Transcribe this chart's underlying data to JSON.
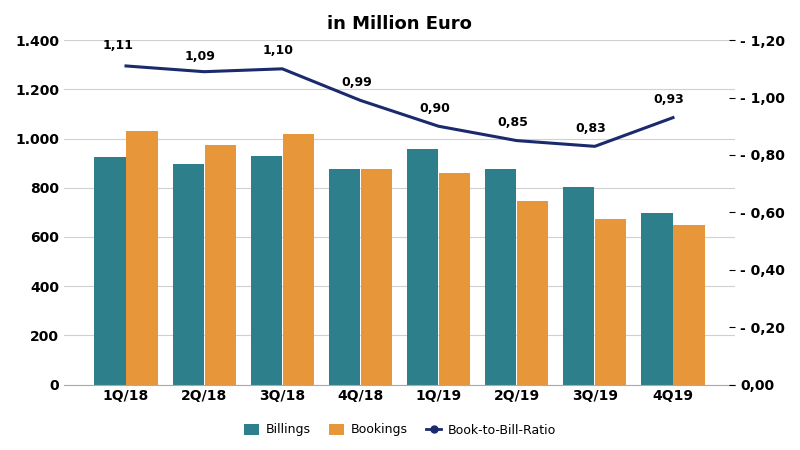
{
  "categories": [
    "1Q/18",
    "2Q/18",
    "3Q/18",
    "4Q/18",
    "1Q/19",
    "2Q/19",
    "3Q/19",
    "4Q19"
  ],
  "billings": [
    925,
    895,
    928,
    878,
    958,
    878,
    805,
    698
  ],
  "bookings": [
    1032,
    975,
    1018,
    875,
    862,
    748,
    672,
    648
  ],
  "btb_ratio": [
    1.11,
    1.09,
    1.1,
    0.99,
    0.9,
    0.85,
    0.83,
    0.93
  ],
  "billings_color": "#2e7f8c",
  "bookings_color": "#e8963a",
  "btb_color": "#1a2a6c",
  "title_line2": "in Million Euro",
  "ylim_left": [
    0,
    1400
  ],
  "ylim_right": [
    0.0,
    1.2
  ],
  "yticks_left": [
    0,
    200,
    400,
    600,
    800,
    1000,
    1200,
    1400
  ],
  "yticks_right": [
    0.0,
    0.2,
    0.4,
    0.6,
    0.8,
    1.0,
    1.2
  ],
  "legend_labels": [
    "Billings",
    "Bookings",
    "Book-to-Bill-Ratio"
  ],
  "background_color": "#ffffff",
  "grid_color": "#d0d0d0"
}
